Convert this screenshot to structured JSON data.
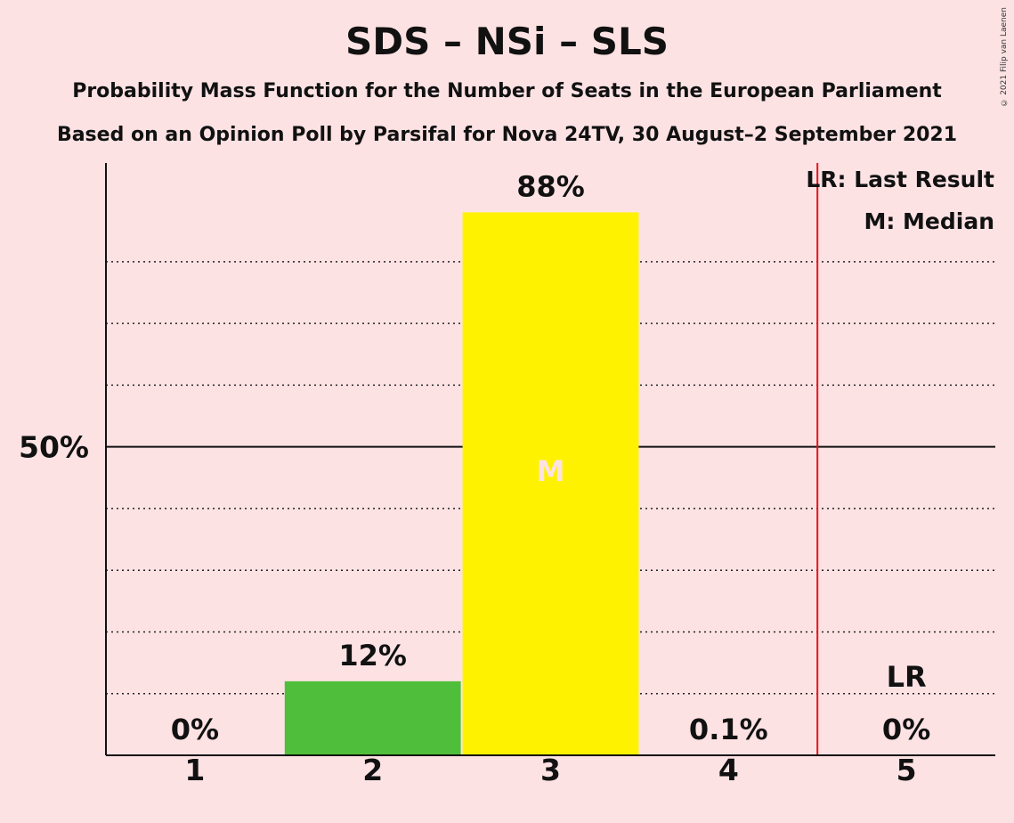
{
  "header": {
    "title": "SDS – NSi – SLS",
    "subtitle_line1": "Probability Mass Function for the Number of Seats in the European Parliament",
    "subtitle_line2": "Based on an Opinion Poll by Parsifal for Nova 24TV, 30 August–2 September 2021",
    "copyright": "© 2021 Filip van Laenen"
  },
  "legend": {
    "last_result": "LR: Last Result",
    "median": "M: Median"
  },
  "chart_data": {
    "type": "bar",
    "categories": [
      "1",
      "2",
      "3",
      "4",
      "5"
    ],
    "values": [
      0,
      12,
      88,
      0.1,
      0
    ],
    "data_labels": [
      "0%",
      "12%",
      "88%",
      "0.1%",
      "0%"
    ],
    "bar_colors": [
      "#4fbe3a",
      "#4fbe3a",
      "#fff200",
      "#fff200",
      "#fff200"
    ],
    "ylim": [
      0,
      96
    ],
    "y_tick_label": "50%",
    "y_tick_value": 50,
    "gridlines_dotted": [
      10,
      20,
      30,
      40,
      60,
      70,
      80
    ],
    "median_category": "3",
    "median_marker": "M",
    "last_result_category": "5",
    "last_result_marker": "LR",
    "last_result_line_color": "#e0161b",
    "legend_position": "top-right"
  }
}
